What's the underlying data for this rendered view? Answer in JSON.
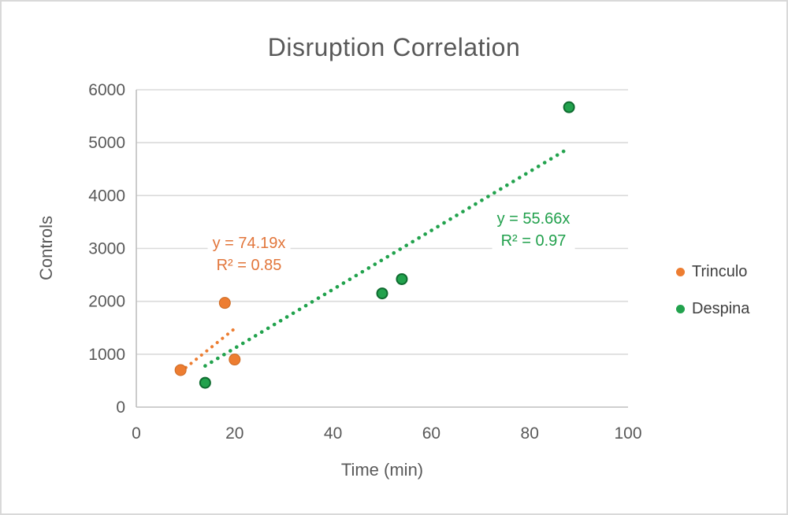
{
  "canvas": {
    "background": "#FFFFFF",
    "border_color": "#D9D9D9"
  },
  "chart_data": {
    "type": "scatter",
    "title": "Disruption Correlation",
    "xlabel": "Time (min)",
    "ylabel": "Controls",
    "xlim": [
      0,
      100
    ],
    "ylim": [
      0,
      6000
    ],
    "x_ticks": [
      0,
      20,
      40,
      60,
      80,
      100
    ],
    "y_ticks": [
      0,
      1000,
      2000,
      3000,
      4000,
      5000,
      6000
    ],
    "grid": "horizontal",
    "legend_position": "right",
    "series": [
      {
        "name": "Trinculo",
        "color": "#ED7D31",
        "marker_border": "#CB6A24",
        "points": [
          [
            9,
            700
          ],
          [
            18,
            1970
          ],
          [
            20,
            900
          ]
        ],
        "trendline": {
          "type": "linear_through_origin",
          "slope": 74.19,
          "r2": 0.85,
          "equation": "y = 74.19x",
          "r2_label": "R² = 0.85",
          "x_range": [
            9,
            20
          ],
          "style": "dotted"
        }
      },
      {
        "name": "Despina",
        "color": "#22A24D",
        "marker_border": "#0E6B2F",
        "points": [
          [
            14,
            460
          ],
          [
            50,
            2150
          ],
          [
            54,
            2420
          ],
          [
            88,
            5670
          ]
        ],
        "trendline": {
          "type": "linear_through_origin",
          "slope": 55.66,
          "r2": 0.97,
          "equation": "y = 55.66x",
          "r2_label": "R² = 0.97",
          "x_range": [
            14,
            88
          ],
          "style": "dotted"
        }
      }
    ],
    "theme": {
      "title_color": "#595959",
      "axis_label_color": "#595959",
      "tick_label_color": "#595959",
      "legend_text_color": "#404040",
      "gridline_color": "#DADADA",
      "axis_line_color": "#BFBFBF",
      "trend_label_colors": [
        "#E2763B",
        "#21A04C"
      ]
    }
  },
  "legend": {
    "items": [
      {
        "label": "Trinculo",
        "color": "#ED7D31"
      },
      {
        "label": "Despina",
        "color": "#22A24D"
      }
    ]
  }
}
